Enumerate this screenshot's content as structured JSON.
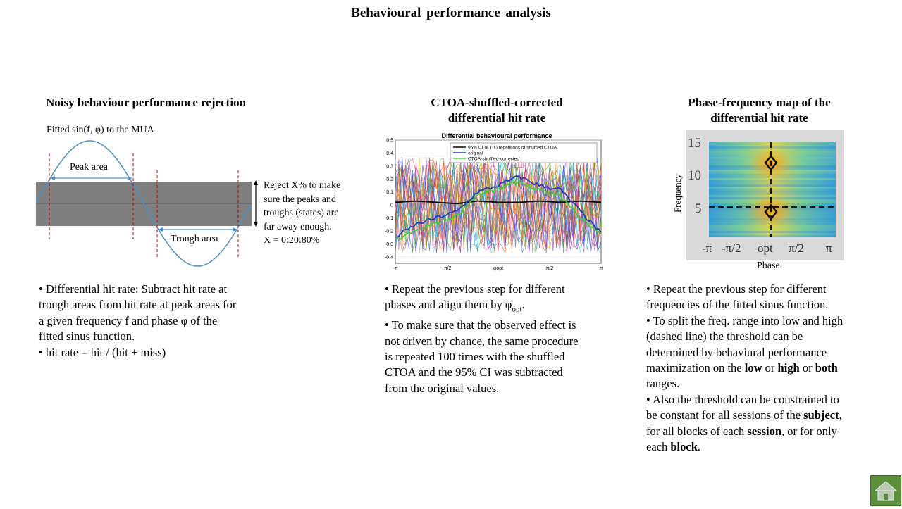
{
  "title": "Behavioural performance analysis",
  "left": {
    "heading": "Noisy behaviour performance rejection",
    "fitted_label": "Fitted sin(f,  φ) to the MUA",
    "peak_label": "Peak area",
    "trough_label": "Trough  area",
    "reject_lines": [
      "Reject X% to make",
      "sure the peaks and",
      "troughs  (states) are",
      "far away enough.",
      "X = 0:20:80%"
    ],
    "bullets": [
      [
        "• Differential  hit rate: Subtract hit rate at",
        "trough areas from hit rate at peak areas for",
        "a given  frequency f and phase φ of the",
        "fitted sinus function."
      ],
      [
        "• hit rate = hit / (hit + miss)"
      ]
    ]
  },
  "middle": {
    "heading_lines": [
      "CTOA-shuffled-corrected",
      "differential hit rate"
    ],
    "bullets": [
      {
        "l1": "• Repeat the previous step for different",
        "l2a": "phases and align  them by φ",
        "sub": "opt",
        "l2b": "."
      },
      {
        "lines": [
          "• To make sure that the observed effect is",
          "not driven by chance, the same procedure",
          "is repeated 100 times with the shuffled",
          "CTOA and the 95% CI was subtracted",
          "from the original  values."
        ]
      }
    ]
  },
  "right": {
    "heading_lines": [
      "Phase-frequency map of the",
      "differential hit rate"
    ],
    "ylabel": "Frequency",
    "xlabel": "Phase",
    "yticks": [
      "15",
      "10",
      "5"
    ],
    "xticks": [
      "-π",
      "-π/2",
      "opt",
      "π/2",
      "π"
    ],
    "bullets": {
      "b1": [
        "• Repeat the previous step for different",
        "frequencies of the fitted sinus function."
      ],
      "b2_l1": "• To split the freq. range into low and high",
      "b2_l2": "(dashed line)  the threshold can be",
      "b2_l3": "determined  by behaviural  performance",
      "b2_l4a": "maximization  on the ",
      "low": "low",
      "or1": " or ",
      "high": "high",
      "or2": " or ",
      "both": "both",
      "b2_l5": "ranges.",
      "b3_l1": "• Also the threshold can be constrained to",
      "b3_l2a": "be constant for all sessions of the ",
      "subject": "subject",
      "b3_l2b": ",",
      "b3_l3a": "for all  blocks of each ",
      "session": "session",
      "b3_l3b": ", or for only",
      "b3_l4a": "each ",
      "block": "block",
      "b3_l4b": "."
    }
  },
  "chart_data": {
    "type": "line",
    "title": "Differential behavioural performance",
    "x_ticks": [
      "-π",
      "-π/2",
      "φopt",
      "π/2",
      "π"
    ],
    "ylim": [
      -0.45,
      0.5
    ],
    "y_ticks": [
      "0.5",
      "0.4",
      "0.3",
      "0.2",
      "0.1",
      "0",
      "-0.1",
      "-0.2",
      "-0.3",
      "-0.4"
    ],
    "legend_position": "top-right",
    "series": [
      {
        "name": "95% CI of 100 repetitions of shuffled CTOA",
        "color": "#000000",
        "x": [
          0,
          0.1,
          0.2,
          0.3,
          0.4,
          0.5,
          0.6,
          0.7,
          0.8,
          0.9,
          1.0
        ],
        "values": [
          0.02,
          0.03,
          0.02,
          0.01,
          0.03,
          0.02,
          0.02,
          0.03,
          0.02,
          0.03,
          0.02
        ]
      },
      {
        "name": "original",
        "color": "#1f3fbf",
        "x": [
          0,
          0.1,
          0.2,
          0.3,
          0.4,
          0.5,
          0.6,
          0.7,
          0.8,
          0.9,
          1.0
        ],
        "values": [
          -0.25,
          -0.15,
          -0.1,
          -0.05,
          0.1,
          0.15,
          0.22,
          0.15,
          0.12,
          -0.05,
          -0.22
        ]
      },
      {
        "name": "CTOA-shuffled-corrected",
        "color": "#3fcf2f",
        "x": [
          0,
          0.1,
          0.2,
          0.3,
          0.4,
          0.5,
          0.6,
          0.7,
          0.8,
          0.9,
          1.0
        ],
        "values": [
          -0.27,
          -0.2,
          -0.14,
          -0.08,
          0.08,
          0.12,
          0.18,
          0.11,
          0.07,
          -0.1,
          -0.23
        ]
      }
    ],
    "noise_colors": [
      "#e6322a",
      "#2f6ee0",
      "#f2b61c",
      "#8a2fb8",
      "#40b040",
      "#30b8d8",
      "#d04a8a",
      "#e07b1e",
      "#3c3cc0"
    ]
  },
  "colors": {
    "sine": "#4a90c9",
    "gray_band": "#7f7f7f",
    "dashed_red": "#c00000",
    "home_green": "#5b8f3c"
  }
}
